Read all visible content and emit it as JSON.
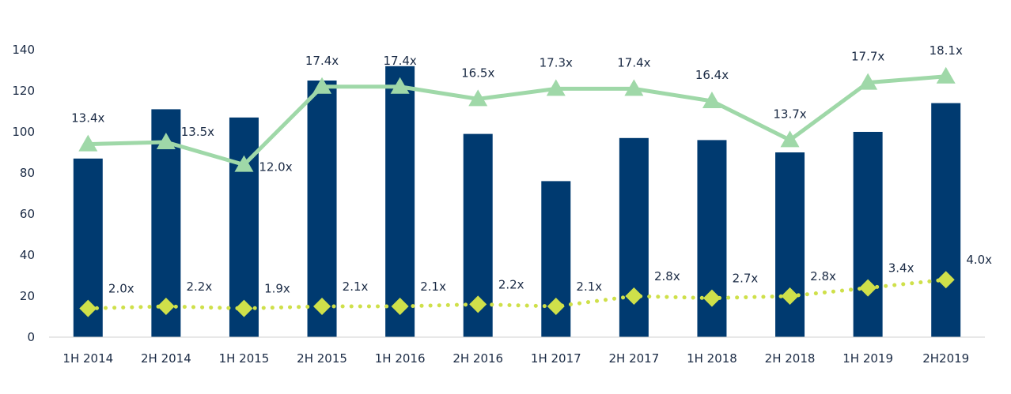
{
  "chart_data": {
    "type": "bar",
    "categories": [
      "1H 2014",
      "2H 2014",
      "1H 2015",
      "2H 2015",
      "1H 2016",
      "2H 2016",
      "1H 2017",
      "2H 2017",
      "1H 2018",
      "2H 2018",
      "1H 2019",
      "2H2019"
    ],
    "ylim": [
      0,
      140
    ],
    "yticks": [
      0,
      20,
      40,
      60,
      80,
      100,
      120,
      140
    ],
    "grid": false,
    "legend": "none",
    "title": "",
    "xlabel": "",
    "ylabel": "",
    "series": [
      {
        "type": "bar",
        "color": "#003a70",
        "values": [
          87,
          111,
          107,
          125,
          132,
          99,
          76,
          97,
          96,
          90,
          100,
          114
        ]
      },
      {
        "type": "line",
        "marker": "triangle",
        "color": "#9fd8a8",
        "values": [
          94,
          95,
          84,
          122,
          122,
          116,
          121,
          121,
          115,
          96,
          124,
          127
        ],
        "labels": [
          "13.4x",
          "13.5x",
          "12.0x",
          "17.4x",
          "17.4x",
          "16.5x",
          "17.3x",
          "17.4x",
          "16.4x",
          "13.7x",
          "17.7x",
          "18.1x"
        ]
      },
      {
        "type": "line",
        "style": "dotted",
        "marker": "diamond",
        "color": "#cfe04a",
        "values": [
          14,
          15,
          14,
          15,
          15,
          16,
          15,
          20,
          19,
          20,
          24,
          28
        ],
        "labels": [
          "2.0x",
          "2.2x",
          "1.9x",
          "2.1x",
          "2.1x",
          "2.2x",
          "2.1x",
          "2.8x",
          "2.7x",
          "2.8x",
          "3.4x",
          "4.0x"
        ]
      }
    ]
  }
}
